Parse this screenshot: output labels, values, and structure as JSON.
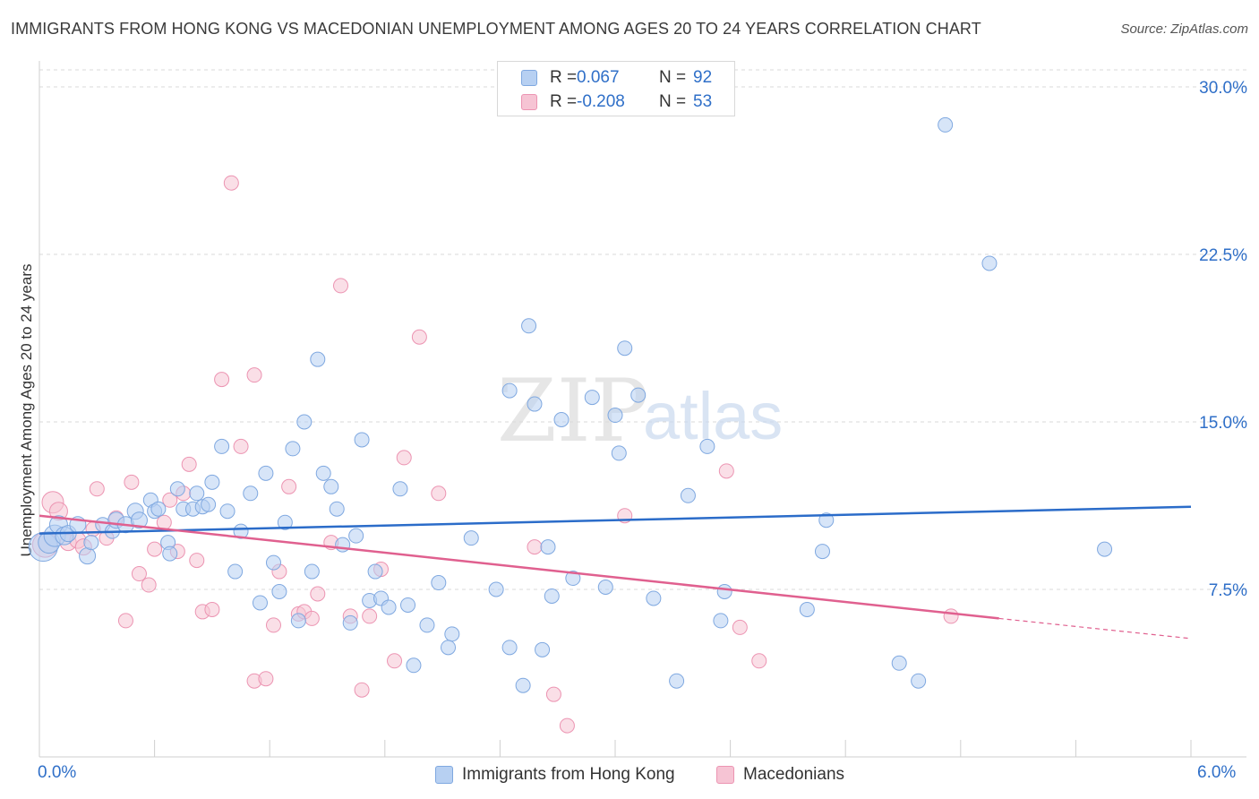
{
  "header": {
    "title": "IMMIGRANTS FROM HONG KONG VS MACEDONIAN UNEMPLOYMENT AMONG AGES 20 TO 24 YEARS CORRELATION CHART",
    "source": "Source: ZipAtlas.com"
  },
  "watermark": {
    "zip": "ZIP",
    "atlas": "atlas"
  },
  "legend_top": {
    "r_label": "R =",
    "n_label": "N =",
    "rows": [
      {
        "r": "0.067",
        "n": "92"
      },
      {
        "r": "-0.208",
        "n": "53"
      }
    ]
  },
  "colors": {
    "blue_fill": "#b7d0f2",
    "blue_stroke": "#7fa8e0",
    "blue_line": "#2b6cc9",
    "pink_fill": "#f6c4d4",
    "pink_stroke": "#ec94b2",
    "pink_line": "#e0608f",
    "tick_label": "#2f6fc8"
  },
  "chart_data": {
    "type": "scatter",
    "title": "IMMIGRANTS FROM HONG KONG VS MACEDONIAN UNEMPLOYMENT AMONG AGES 20 TO 24 YEARS CORRELATION CHART",
    "xlabel": "",
    "ylabel": "Unemployment Among Ages 20 to 24 years",
    "xlim": [
      0,
      6
    ],
    "ylim": [
      0,
      30
    ],
    "y_ticks": [
      7.5,
      15,
      22.5,
      30
    ],
    "y_tick_labels": [
      "7.5%",
      "15.0%",
      "22.5%",
      "30.0%"
    ],
    "x_tick_labels": [
      "0.0%",
      "6.0%"
    ],
    "grid": "horizontal dashed",
    "legend_placement": "top-center and bottom",
    "series": [
      {
        "name": "Immigrants from Hong Kong",
        "color": "blue",
        "R": 0.067,
        "N": 92,
        "trend": {
          "x": [
            0,
            6
          ],
          "y": [
            10.0,
            11.2
          ]
        },
        "points": [
          [
            0.02,
            9.4,
            16
          ],
          [
            0.05,
            9.6,
            12
          ],
          [
            0.08,
            9.9,
            12
          ],
          [
            0.1,
            10.4,
            10
          ],
          [
            0.13,
            9.9,
            10
          ],
          [
            0.15,
            10.0,
            9
          ],
          [
            0.2,
            10.4,
            9
          ],
          [
            0.25,
            9.0,
            9
          ],
          [
            0.27,
            9.6,
            8
          ],
          [
            0.33,
            10.4,
            8
          ],
          [
            0.38,
            10.1,
            8
          ],
          [
            0.4,
            10.6,
            9
          ],
          [
            0.45,
            10.4,
            9
          ],
          [
            0.5,
            11.0,
            9
          ],
          [
            0.52,
            10.6,
            9
          ],
          [
            0.58,
            11.5,
            8
          ],
          [
            0.6,
            11.0,
            8
          ],
          [
            0.62,
            11.1,
            8
          ],
          [
            0.67,
            9.6,
            8
          ],
          [
            0.68,
            9.1,
            8
          ],
          [
            0.72,
            12.0,
            8
          ],
          [
            0.75,
            11.1,
            8
          ],
          [
            0.8,
            11.1,
            8
          ],
          [
            0.82,
            11.8,
            8
          ],
          [
            0.85,
            11.2,
            8
          ],
          [
            0.88,
            11.3,
            8
          ],
          [
            0.9,
            12.3,
            8
          ],
          [
            0.95,
            13.9,
            8
          ],
          [
            0.98,
            11.0,
            8
          ],
          [
            1.02,
            8.3,
            8
          ],
          [
            1.05,
            10.1,
            8
          ],
          [
            1.1,
            11.8,
            8
          ],
          [
            1.15,
            6.9,
            8
          ],
          [
            1.18,
            12.7,
            8
          ],
          [
            1.22,
            8.7,
            8
          ],
          [
            1.25,
            7.4,
            8
          ],
          [
            1.28,
            10.5,
            8
          ],
          [
            1.32,
            13.8,
            8
          ],
          [
            1.35,
            6.1,
            8
          ],
          [
            1.38,
            15.0,
            8
          ],
          [
            1.42,
            8.3,
            8
          ],
          [
            1.45,
            17.8,
            8
          ],
          [
            1.48,
            12.7,
            8
          ],
          [
            1.52,
            12.1,
            8
          ],
          [
            1.55,
            11.1,
            8
          ],
          [
            1.58,
            9.5,
            8
          ],
          [
            1.62,
            6.0,
            8
          ],
          [
            1.65,
            9.9,
            8
          ],
          [
            1.68,
            14.2,
            8
          ],
          [
            1.72,
            7.0,
            8
          ],
          [
            1.75,
            8.3,
            8
          ],
          [
            1.78,
            7.1,
            8
          ],
          [
            1.82,
            6.7,
            8
          ],
          [
            1.88,
            12.0,
            8
          ],
          [
            1.92,
            6.8,
            8
          ],
          [
            1.95,
            4.1,
            8
          ],
          [
            2.02,
            5.9,
            8
          ],
          [
            2.08,
            7.8,
            8
          ],
          [
            2.15,
            5.5,
            8
          ],
          [
            2.13,
            4.9,
            8
          ],
          [
            2.25,
            9.8,
            8
          ],
          [
            2.38,
            7.5,
            8
          ],
          [
            2.45,
            4.9,
            8
          ],
          [
            2.45,
            16.4,
            8
          ],
          [
            2.52,
            3.2,
            8
          ],
          [
            2.55,
            19.3,
            8
          ],
          [
            2.58,
            15.8,
            8
          ],
          [
            2.62,
            4.8,
            8
          ],
          [
            2.65,
            9.4,
            8
          ],
          [
            2.67,
            7.2,
            8
          ],
          [
            2.72,
            15.1,
            8
          ],
          [
            2.78,
            8.0,
            8
          ],
          [
            2.88,
            16.1,
            8
          ],
          [
            2.95,
            7.6,
            8
          ],
          [
            3.0,
            15.3,
            8
          ],
          [
            3.02,
            13.6,
            8
          ],
          [
            3.05,
            18.3,
            8
          ],
          [
            3.12,
            16.2,
            8
          ],
          [
            3.2,
            7.1,
            8
          ],
          [
            3.32,
            3.4,
            8
          ],
          [
            3.38,
            11.7,
            8
          ],
          [
            3.48,
            13.9,
            8
          ],
          [
            3.55,
            6.1,
            8
          ],
          [
            3.57,
            7.4,
            8
          ],
          [
            4.0,
            6.6,
            8
          ],
          [
            4.1,
            10.6,
            8
          ],
          [
            4.08,
            9.2,
            8
          ],
          [
            4.48,
            4.2,
            8
          ],
          [
            4.58,
            3.4,
            8
          ],
          [
            4.72,
            28.3,
            8
          ],
          [
            4.95,
            22.1,
            8
          ],
          [
            5.55,
            9.3,
            8
          ]
        ]
      },
      {
        "name": "Macedonians",
        "color": "pink",
        "R": -0.208,
        "N": 53,
        "trend": {
          "x": [
            0,
            5.0
          ],
          "y": [
            10.8,
            6.2
          ],
          "dash_to_x": 6,
          "dash_to_y": 5.3
        },
        "points": [
          [
            0.03,
            9.5,
            14
          ],
          [
            0.07,
            11.4,
            12
          ],
          [
            0.1,
            11.0,
            10
          ],
          [
            0.15,
            9.6,
            9
          ],
          [
            0.2,
            9.7,
            9
          ],
          [
            0.23,
            9.4,
            9
          ],
          [
            0.28,
            10.2,
            8
          ],
          [
            0.3,
            12.0,
            8
          ],
          [
            0.35,
            9.8,
            8
          ],
          [
            0.4,
            10.7,
            8
          ],
          [
            0.45,
            6.1,
            8
          ],
          [
            0.48,
            12.3,
            8
          ],
          [
            0.52,
            8.2,
            8
          ],
          [
            0.57,
            7.7,
            8
          ],
          [
            0.6,
            9.3,
            8
          ],
          [
            0.65,
            10.5,
            8
          ],
          [
            0.68,
            11.5,
            8
          ],
          [
            0.72,
            9.2,
            8
          ],
          [
            0.75,
            11.8,
            8
          ],
          [
            0.78,
            13.1,
            8
          ],
          [
            0.82,
            8.8,
            8
          ],
          [
            0.85,
            6.5,
            8
          ],
          [
            0.9,
            6.6,
            8
          ],
          [
            0.95,
            16.9,
            8
          ],
          [
            1.0,
            25.7,
            8
          ],
          [
            1.05,
            13.9,
            8
          ],
          [
            1.12,
            17.1,
            8
          ],
          [
            1.12,
            3.4,
            8
          ],
          [
            1.18,
            3.5,
            8
          ],
          [
            1.22,
            5.9,
            8
          ],
          [
            1.25,
            8.3,
            8
          ],
          [
            1.3,
            12.1,
            8
          ],
          [
            1.35,
            6.4,
            8
          ],
          [
            1.38,
            6.5,
            8
          ],
          [
            1.42,
            6.2,
            8
          ],
          [
            1.45,
            7.3,
            8
          ],
          [
            1.52,
            9.6,
            8
          ],
          [
            1.57,
            21.1,
            8
          ],
          [
            1.62,
            6.3,
            8
          ],
          [
            1.68,
            3.0,
            8
          ],
          [
            1.72,
            6.3,
            8
          ],
          [
            1.78,
            8.4,
            8
          ],
          [
            1.85,
            4.3,
            8
          ],
          [
            1.9,
            13.4,
            8
          ],
          [
            1.98,
            18.8,
            8
          ],
          [
            2.08,
            11.8,
            8
          ],
          [
            2.58,
            9.4,
            8
          ],
          [
            2.68,
            2.8,
            8
          ],
          [
            2.75,
            1.4,
            8
          ],
          [
            3.05,
            10.8,
            8
          ],
          [
            3.58,
            12.8,
            8
          ],
          [
            3.65,
            5.8,
            8
          ],
          [
            3.75,
            4.3,
            8
          ],
          [
            4.75,
            6.3,
            8
          ]
        ]
      }
    ]
  },
  "legend_bottom": {
    "items": [
      "Immigrants from Hong Kong",
      "Macedonians"
    ]
  }
}
